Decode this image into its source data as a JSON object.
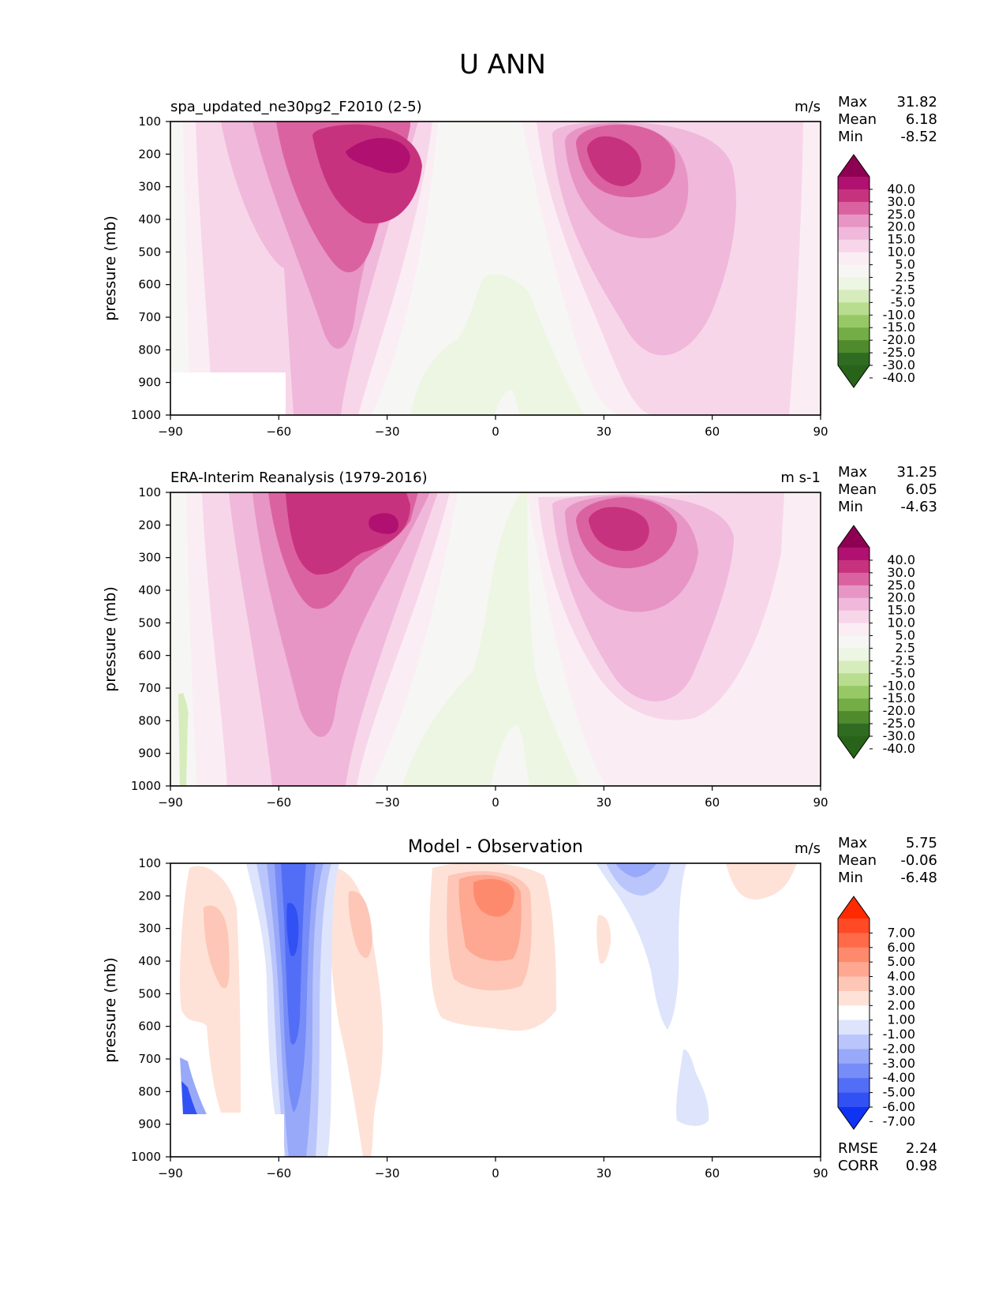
{
  "figure_title": "U ANN",
  "chart_data": [
    {
      "type": "contour",
      "panel": "test",
      "title_left": "spa_updated_ne30pg2_F2010 (2-5)",
      "title_center": "",
      "units": "m/s",
      "xlabel": "",
      "ylabel": "pressure (mb)",
      "xlim": [
        -90,
        90
      ],
      "ylim": [
        1000,
        100
      ],
      "xticks": [
        "−90",
        "−60",
        "−30",
        "0",
        "30",
        "60",
        "90"
      ],
      "yticks": [
        "100",
        "200",
        "300",
        "400",
        "500",
        "600",
        "700",
        "800",
        "900",
        "1000"
      ],
      "stats": [
        {
          "label": "Max",
          "value": "31.82"
        },
        {
          "label": "Mean",
          "value": "6.18"
        },
        {
          "label": "Min",
          "value": "-8.52"
        }
      ],
      "colorbar": {
        "levels": [
          "40.0",
          "30.0",
          "25.0",
          "20.0",
          "15.0",
          "10.0",
          "5.0",
          "2.5",
          "-2.5",
          "-5.0",
          "-10.0",
          "-15.0",
          "-20.0",
          "-25.0",
          "-30.0",
          "-40.0"
        ],
        "colors": [
          "#8e0152",
          "#b01170",
          "#c7327f",
          "#db62a0",
          "#e795c5",
          "#f0b8da",
          "#f7d6ea",
          "#fbedf4",
          "#f6f6f4",
          "#edf6e2",
          "#d7ecbc",
          "#b8dd8e",
          "#96c965",
          "#74ac45",
          "#4f8a2c",
          "#306b22",
          "#276419"
        ]
      },
      "features": {
        "jets": [
          {
            "name": "SH jet core",
            "lat": -33,
            "p": 210,
            "peak": 31.82
          },
          {
            "name": "NH jet core",
            "lat": 31,
            "p": 210,
            "peak": 29
          },
          {
            "name": "tropical easterlies",
            "lat": 3,
            "p": 850,
            "peak": -5
          }
        ]
      }
    },
    {
      "type": "contour",
      "panel": "reference",
      "title_left": "ERA-Interim Reanalysis (1979-2016)",
      "title_center": "",
      "units": "m s-1",
      "xlabel": "",
      "ylabel": "pressure (mb)",
      "xlim": [
        -90,
        90
      ],
      "ylim": [
        1000,
        100
      ],
      "xticks": [
        "−90",
        "−60",
        "−30",
        "0",
        "30",
        "60",
        "90"
      ],
      "yticks": [
        "100",
        "200",
        "300",
        "400",
        "500",
        "600",
        "700",
        "800",
        "900",
        "1000"
      ],
      "stats": [
        {
          "label": "Max",
          "value": "31.25"
        },
        {
          "label": "Mean",
          "value": "6.05"
        },
        {
          "label": "Min",
          "value": "-4.63"
        }
      ],
      "colorbar": {
        "levels": [
          "40.0",
          "30.0",
          "25.0",
          "20.0",
          "15.0",
          "10.0",
          "5.0",
          "2.5",
          "-2.5",
          "-5.0",
          "-10.0",
          "-15.0",
          "-20.0",
          "-25.0",
          "-30.0",
          "-40.0"
        ],
        "colors": [
          "#8e0152",
          "#b01170",
          "#c7327f",
          "#db62a0",
          "#e795c5",
          "#f0b8da",
          "#f7d6ea",
          "#fbedf4",
          "#f6f6f4",
          "#edf6e2",
          "#d7ecbc",
          "#b8dd8e",
          "#96c965",
          "#74ac45",
          "#4f8a2c",
          "#306b22",
          "#276419"
        ]
      },
      "features": {
        "jets": [
          {
            "name": "SH jet core",
            "lat": -42,
            "p": 230,
            "peak": 31.25
          },
          {
            "name": "NH jet core",
            "lat": 34,
            "p": 225,
            "peak": 29
          },
          {
            "name": "tropical easterlies",
            "lat": 0,
            "p": 700,
            "peak": -4.6
          }
        ]
      }
    },
    {
      "type": "contour",
      "panel": "difference",
      "title_left": "",
      "title_center": "Model - Observation",
      "units": "m/s",
      "xlabel": "",
      "ylabel": "pressure (mb)",
      "xlim": [
        -90,
        90
      ],
      "ylim": [
        1000,
        100
      ],
      "xticks": [
        "−90",
        "−60",
        "−30",
        "0",
        "30",
        "60",
        "90"
      ],
      "yticks": [
        "100",
        "200",
        "300",
        "400",
        "500",
        "600",
        "700",
        "800",
        "900",
        "1000"
      ],
      "stats": [
        {
          "label": "Max",
          "value": "5.75"
        },
        {
          "label": "Mean",
          "value": "-0.06"
        },
        {
          "label": "Min",
          "value": "-6.48"
        }
      ],
      "extra_stats": [
        {
          "label": "RMSE",
          "value": "2.24"
        },
        {
          "label": "CORR",
          "value": "0.98"
        }
      ],
      "colorbar": {
        "levels": [
          "7.00",
          "6.00",
          "5.00",
          "4.00",
          "3.00",
          "2.00",
          "1.00",
          "-1.00",
          "-2.00",
          "-3.00",
          "-4.00",
          "-5.00",
          "-6.00",
          "-7.00"
        ],
        "colors": [
          "#ff2a00",
          "#ff4a25",
          "#ff6a48",
          "#fe8a6d",
          "#fea791",
          "#fec6b6",
          "#fee2d8",
          "#ffffff",
          "#dde4fc",
          "#bac6fb",
          "#98a9f9",
          "#768cf8",
          "#536ef6",
          "#3151f5",
          "#0e33f3"
        ]
      },
      "features": {
        "anomalies": [
          {
            "name": "SH high-lat easterly bias",
            "lat": -56,
            "p": 300,
            "value": -6.48
          },
          {
            "name": "equatorial westerly bias",
            "lat": 0,
            "p": 180,
            "value": 5.75
          },
          {
            "name": "NH subpolar easterly bias",
            "lat": 40,
            "p": 150,
            "value": -3.5
          }
        ]
      }
    }
  ]
}
